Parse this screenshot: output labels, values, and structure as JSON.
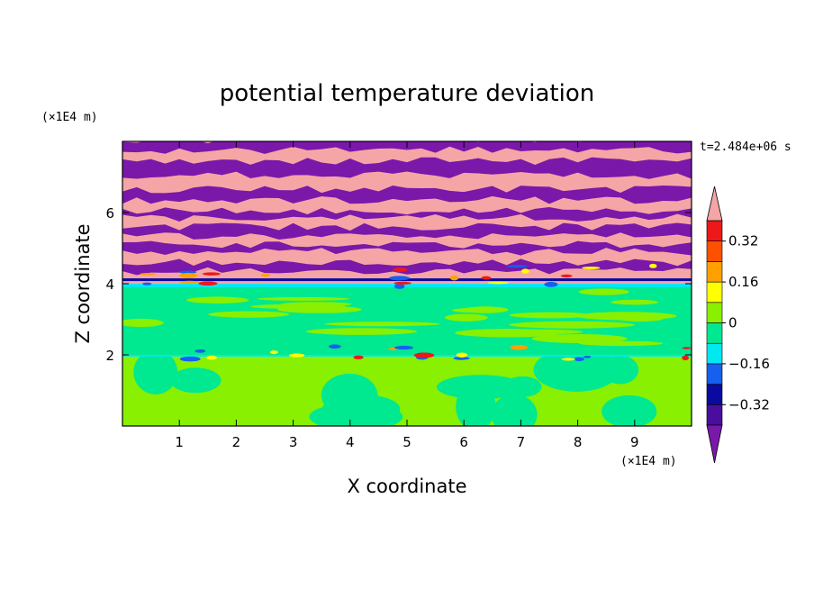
{
  "chart_data": {
    "type": "heatmap",
    "title": "potential temperature deviation",
    "xlabel": "X coordinate",
    "ylabel": "Z coordinate",
    "x_unit": "(×1E4 m)",
    "y_unit": "(×1E4 m)",
    "time_label": "t=2.484e+06 s",
    "xlim": [
      0,
      10
    ],
    "ylim": [
      0,
      8
    ],
    "x_ticks": [
      1,
      2,
      3,
      4,
      5,
      6,
      7,
      8,
      9
    ],
    "y_ticks": [
      2,
      4,
      6
    ],
    "colorbar": {
      "levels": [
        -0.4,
        -0.32,
        -0.24,
        -0.16,
        -0.08,
        0,
        0.08,
        0.16,
        0.24,
        0.32,
        0.4
      ],
      "colors": [
        "#7a18aa",
        "#4a0e9e",
        "#0a0aa0",
        "#1560ee",
        "#00e8f0",
        "#00e890",
        "#88f000",
        "#ffff00",
        "#ffa000",
        "#ff5000",
        "#ee1818",
        "#f5a5a5"
      ],
      "labels": [
        "0.32",
        "0.16",
        "0",
        "−0.16",
        "−0.32"
      ],
      "label_values": [
        0.32,
        0.16,
        0,
        -0.16,
        -0.32
      ],
      "extend": "both"
    },
    "regions": [
      {
        "z_range": [
          0,
          2
        ],
        "description_value": 0.04
      },
      {
        "z_range": [
          2,
          4
        ],
        "description_value": -0.04
      },
      {
        "z_range": [
          4,
          8
        ],
        "alternating_values": [
          0.4,
          -0.4
        ]
      }
    ]
  },
  "colors": {
    "pink": "#f5a5a5",
    "purple": "#7a18aa",
    "green": "#00e890",
    "lime": "#88f000",
    "cyan": "#00e8f0",
    "red": "#ee1818",
    "orange": "#ffa000",
    "yellow": "#ffff00",
    "blue": "#1560ee",
    "darkblue": "#0a0aa0"
  }
}
